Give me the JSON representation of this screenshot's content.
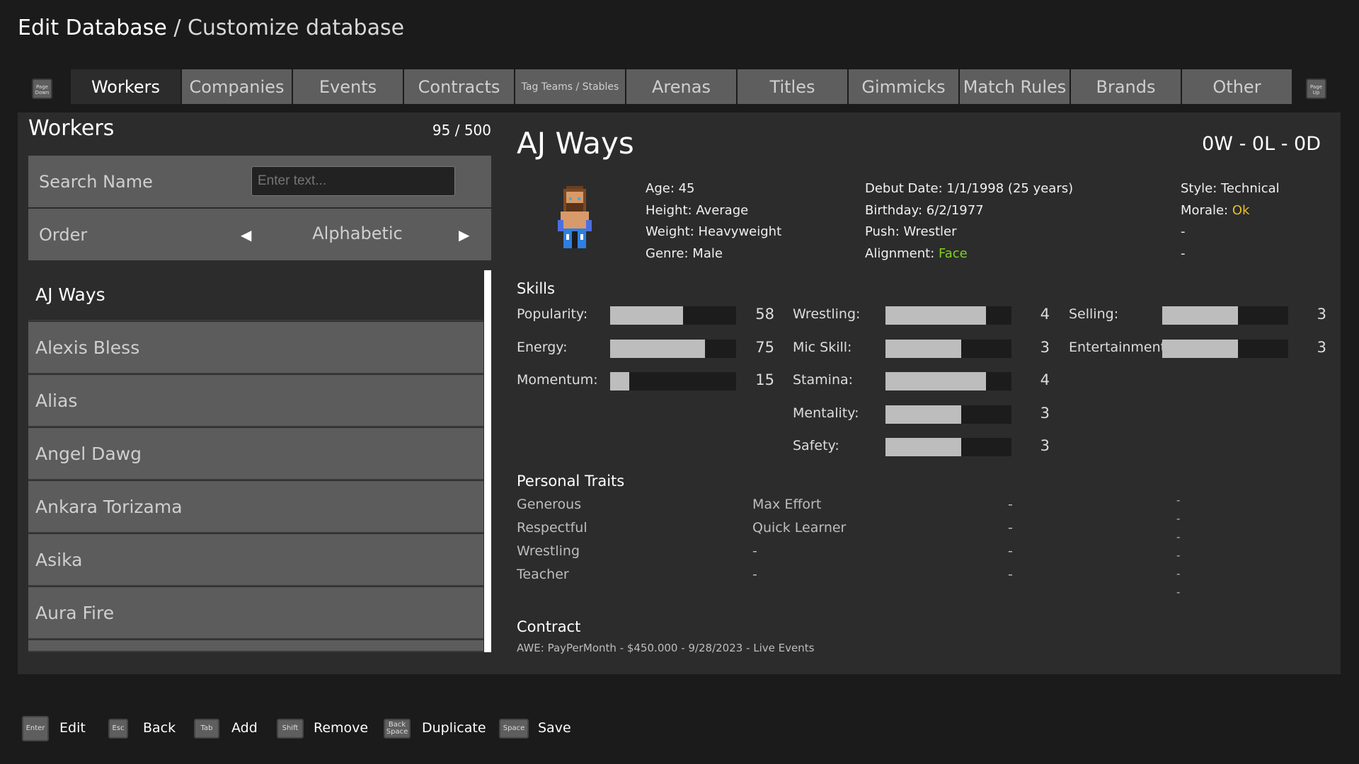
{
  "header": {
    "title": "Edit Database",
    "separator": " / ",
    "subtitle": "Customize database"
  },
  "nav": {
    "page_down": "Page Down",
    "page_up": "Page Up",
    "tabs": [
      "Workers",
      "Companies",
      "Events",
      "Contracts",
      "Tag Teams / Stables",
      "Arenas",
      "Titles",
      "Gimmicks",
      "Match Rules",
      "Brands",
      "Other"
    ],
    "active": "Workers"
  },
  "left": {
    "title": "Workers",
    "count": "95 / 500",
    "search_label": "Search Name",
    "search_placeholder": "Enter text...",
    "order_label": "Order",
    "order_value": "Alphabetic",
    "workers": [
      "AJ Ways",
      "Alexis Bless",
      "Alias",
      "Angel Dawg",
      "Ankara Torizama",
      "Asika",
      "Aura Fire"
    ],
    "selected": "AJ Ways"
  },
  "worker": {
    "name": "AJ Ways",
    "record": "0W - 0L - 0D",
    "info": {
      "age": "Age: 45",
      "height": "Height: Average",
      "weight": "Weight: Heavyweight",
      "genre": "Genre: Male",
      "debut": "Debut Date: 1/1/1998 (25 years)",
      "birthday": "Birthday: 6/2/1977",
      "push": "Push: Wrestler",
      "alignment_label": "Alignment: ",
      "alignment": "Face",
      "style": "Style: Technical",
      "morale_label": "Morale: ",
      "morale": "Ok",
      "extra1": "-",
      "extra2": "-"
    },
    "colors": {
      "face": "#7ed321",
      "morale_ok": "#e6c229"
    },
    "skills_title": "Skills",
    "skills": [
      {
        "label": "Popularity:",
        "value": "58",
        "max": 100
      },
      {
        "label": "Energy:",
        "value": "75",
        "max": 100
      },
      {
        "label": "Momentum:",
        "value": "15",
        "max": 100
      },
      {
        "label": "Wrestling:",
        "value": "4",
        "max": 5
      },
      {
        "label": "Mic Skill:",
        "value": "3",
        "max": 5
      },
      {
        "label": "Stamina:",
        "value": "4",
        "max": 5
      },
      {
        "label": "Mentality:",
        "value": "3",
        "max": 5
      },
      {
        "label": "Safety:",
        "value": "3",
        "max": 5
      },
      {
        "label": "Selling:",
        "value": "3",
        "max": 5
      },
      {
        "label": "Entertainment:",
        "value": "3",
        "max": 5
      }
    ],
    "traits_title": "Personal Traits",
    "traits_col1": [
      "Generous",
      "Respectful",
      "Wrestling",
      "Teacher"
    ],
    "traits_col2": [
      "Max Effort",
      "Quick Learner",
      "-",
      "-"
    ],
    "traits_col3": [
      "-",
      "-",
      "-",
      "-"
    ],
    "traits_col4": [
      "-",
      "-",
      "-",
      "-",
      "-",
      "-"
    ],
    "contract_title": "Contract",
    "contract": "AWE: PayPerMonth - $450.000 - 9/28/2023 - Live Events"
  },
  "footer": [
    {
      "key": "Enter",
      "label": "Edit"
    },
    {
      "key": "Esc",
      "label": "Back"
    },
    {
      "key": "Tab",
      "label": "Add"
    },
    {
      "key": "Shift",
      "label": "Remove"
    },
    {
      "key": "Back Space",
      "label": "Duplicate"
    },
    {
      "key": "Space",
      "label": "Save"
    }
  ]
}
